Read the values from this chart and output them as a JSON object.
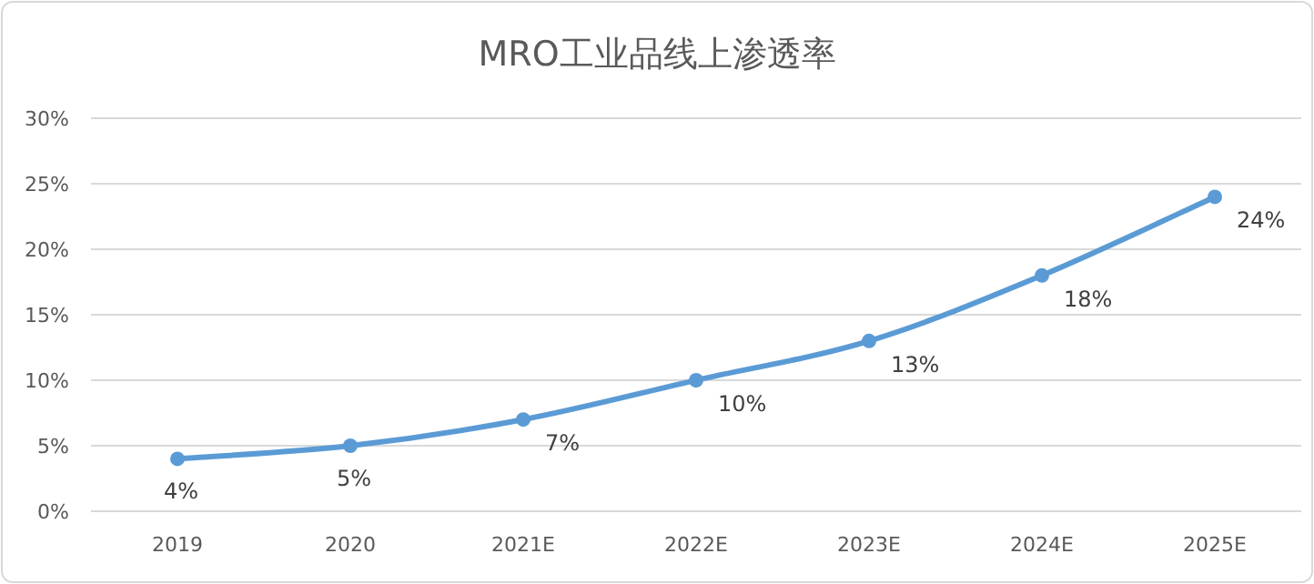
{
  "chart_data": {
    "type": "line",
    "title": "MRO工业品线上渗透率",
    "categories": [
      "2019",
      "2020",
      "2021E",
      "2022E",
      "2023E",
      "2024E",
      "2025E"
    ],
    "values": [
      4,
      5,
      7,
      10,
      13,
      18,
      24
    ],
    "value_labels": [
      "4%",
      "5%",
      "7%",
      "10%",
      "13%",
      "18%",
      "24%"
    ],
    "color": "#5b9bd5",
    "marker": "circle",
    "line_style": "solid",
    "grid": "y",
    "ylim": [
      0,
      30
    ],
    "yticks": [
      {
        "value": 0,
        "label": "0%"
      },
      {
        "value": 5,
        "label": "5%"
      },
      {
        "value": 10,
        "label": "10%"
      },
      {
        "value": 15,
        "label": "15%"
      },
      {
        "value": 20,
        "label": "20%"
      },
      {
        "value": 25,
        "label": "25%"
      },
      {
        "value": 30,
        "label": "30%"
      }
    ]
  }
}
